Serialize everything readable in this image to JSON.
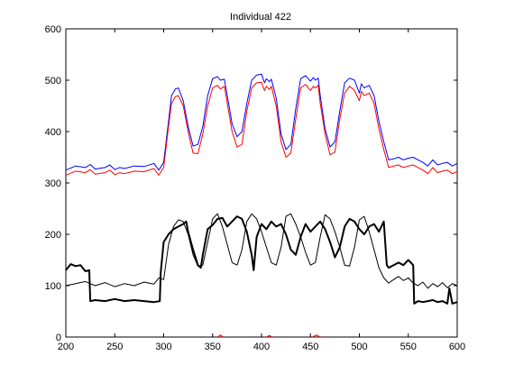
{
  "chart_data": {
    "type": "line",
    "title": "Individual 422",
    "xlabel": "",
    "ylabel": "",
    "xlim": [
      200,
      600
    ],
    "ylim": [
      0,
      600
    ],
    "xticks": [
      200,
      250,
      300,
      350,
      400,
      450,
      500,
      550,
      600
    ],
    "yticks": [
      0,
      100,
      200,
      300,
      400,
      500,
      600
    ],
    "grid": false,
    "legend": "none",
    "series": [
      {
        "color": "#0000ff",
        "width": 1,
        "x": [
          200,
          210,
          220,
          225,
          230,
          240,
          245,
          250,
          255,
          260,
          270,
          280,
          290,
          295,
          300,
          305,
          308,
          312,
          315,
          320,
          325,
          330,
          335,
          340,
          345,
          350,
          355,
          358,
          362,
          365,
          370,
          375,
          380,
          385,
          390,
          395,
          400,
          403,
          405,
          408,
          410,
          415,
          420,
          425,
          430,
          435,
          440,
          445,
          450,
          453,
          455,
          458,
          460,
          465,
          470,
          475,
          480,
          485,
          490,
          495,
          500,
          502,
          505,
          510,
          515,
          520,
          525,
          530,
          535,
          540,
          545,
          550,
          555,
          560,
          565,
          570,
          575,
          580,
          585,
          590,
          595,
          600
        ],
        "y": [
          325,
          333,
          330,
          336,
          327,
          330,
          335,
          326,
          330,
          328,
          333,
          332,
          338,
          325,
          340,
          420,
          470,
          483,
          485,
          460,
          410,
          372,
          375,
          410,
          470,
          503,
          507,
          500,
          502,
          470,
          415,
          390,
          400,
          455,
          500,
          510,
          512,
          495,
          503,
          497,
          502,
          465,
          395,
          365,
          375,
          445,
          503,
          509,
          498,
          505,
          500,
          504,
          470,
          405,
          370,
          380,
          440,
          495,
          504,
          500,
          475,
          493,
          485,
          490,
          470,
          420,
          380,
          345,
          347,
          350,
          345,
          348,
          350,
          345,
          340,
          333,
          345,
          335,
          338,
          340,
          333,
          338
        ]
      },
      {
        "color": "#ff0000",
        "width": 1,
        "x": [
          200,
          210,
          220,
          225,
          230,
          240,
          245,
          250,
          255,
          260,
          270,
          280,
          290,
          295,
          300,
          305,
          308,
          312,
          315,
          320,
          325,
          330,
          335,
          340,
          345,
          350,
          355,
          358,
          362,
          365,
          370,
          375,
          380,
          385,
          390,
          395,
          400,
          403,
          405,
          408,
          410,
          415,
          420,
          425,
          430,
          435,
          440,
          445,
          450,
          453,
          455,
          458,
          460,
          465,
          470,
          475,
          480,
          485,
          490,
          495,
          500,
          502,
          505,
          510,
          515,
          520,
          525,
          530,
          535,
          540,
          545,
          550,
          555,
          560,
          565,
          570,
          575,
          580,
          585,
          590,
          595,
          600
        ],
        "y": [
          315,
          323,
          320,
          326,
          317,
          320,
          325,
          316,
          320,
          318,
          323,
          322,
          328,
          315,
          330,
          410,
          455,
          468,
          470,
          450,
          400,
          358,
          357,
          395,
          450,
          485,
          490,
          483,
          488,
          455,
          400,
          370,
          375,
          440,
          485,
          495,
          496,
          480,
          488,
          482,
          488,
          450,
          380,
          350,
          358,
          425,
          485,
          492,
          480,
          488,
          485,
          490,
          455,
          395,
          355,
          360,
          425,
          475,
          488,
          480,
          460,
          478,
          470,
          475,
          455,
          405,
          365,
          330,
          333,
          335,
          330,
          333,
          335,
          330,
          325,
          318,
          330,
          320,
          323,
          325,
          318,
          322
        ]
      },
      {
        "color": "#000000",
        "width": 2,
        "x": [
          200,
          205,
          210,
          215,
          220,
          224,
          225,
          230,
          240,
          250,
          260,
          270,
          280,
          290,
          296,
          297,
          300,
          305,
          310,
          315,
          320,
          323,
          325,
          330,
          335,
          338,
          340,
          345,
          350,
          355,
          360,
          365,
          370,
          375,
          380,
          385,
          390,
          392,
          395,
          400,
          405,
          410,
          415,
          420,
          425,
          430,
          435,
          440,
          445,
          450,
          455,
          460,
          465,
          470,
          475,
          480,
          485,
          490,
          495,
          500,
          505,
          510,
          515,
          520,
          525,
          528,
          530,
          535,
          540,
          545,
          550,
          555,
          556,
          560,
          565,
          570,
          575,
          580,
          585,
          590,
          592,
          595,
          600
        ],
        "y": [
          130,
          142,
          138,
          140,
          128,
          130,
          70,
          72,
          70,
          74,
          70,
          72,
          70,
          68,
          70,
          125,
          185,
          200,
          210,
          215,
          220,
          225,
          205,
          170,
          140,
          135,
          160,
          210,
          218,
          230,
          232,
          215,
          225,
          235,
          230,
          205,
          160,
          130,
          195,
          220,
          210,
          225,
          215,
          220,
          200,
          170,
          160,
          195,
          220,
          205,
          215,
          225,
          210,
          185,
          155,
          175,
          215,
          230,
          225,
          210,
          200,
          215,
          220,
          205,
          225,
          140,
          135,
          140,
          145,
          140,
          150,
          140,
          65,
          70,
          68,
          70,
          72,
          68,
          70,
          65,
          95,
          65,
          68
        ]
      },
      {
        "color": "#000000",
        "width": 1,
        "x": [
          200,
          210,
          220,
          230,
          240,
          250,
          260,
          270,
          280,
          290,
          295,
          300,
          305,
          310,
          315,
          320,
          325,
          330,
          335,
          340,
          345,
          350,
          355,
          360,
          365,
          370,
          375,
          380,
          385,
          390,
          395,
          400,
          405,
          410,
          415,
          420,
          425,
          430,
          435,
          440,
          445,
          450,
          455,
          460,
          465,
          470,
          475,
          480,
          485,
          490,
          495,
          500,
          505,
          510,
          515,
          520,
          525,
          530,
          535,
          540,
          545,
          550,
          555,
          560,
          565,
          570,
          575,
          580,
          585,
          590,
          595,
          600
        ],
        "y": [
          100,
          104,
          108,
          100,
          106,
          98,
          104,
          100,
          107,
          103,
          115,
          112,
          180,
          215,
          228,
          225,
          200,
          160,
          138,
          140,
          185,
          230,
          240,
          215,
          180,
          145,
          140,
          170,
          225,
          240,
          230,
          205,
          175,
          145,
          140,
          175,
          235,
          240,
          220,
          195,
          165,
          140,
          145,
          195,
          238,
          230,
          205,
          175,
          140,
          138,
          175,
          228,
          235,
          205,
          170,
          135,
          115,
          105,
          112,
          118,
          110,
          115,
          105,
          100,
          107,
          95,
          104,
          98,
          106,
          96,
          104,
          100
        ]
      },
      {
        "color": "#ff0000",
        "width": 1,
        "x": [
          355,
          358,
          361
        ],
        "y": [
          0,
          4,
          0
        ]
      },
      {
        "color": "#ff0000",
        "width": 1,
        "x": [
          405,
          408,
          411
        ],
        "y": [
          0,
          3,
          0
        ]
      },
      {
        "color": "#ff0000",
        "width": 1,
        "x": [
          452,
          456,
          460
        ],
        "y": [
          0,
          4,
          0
        ]
      }
    ]
  }
}
